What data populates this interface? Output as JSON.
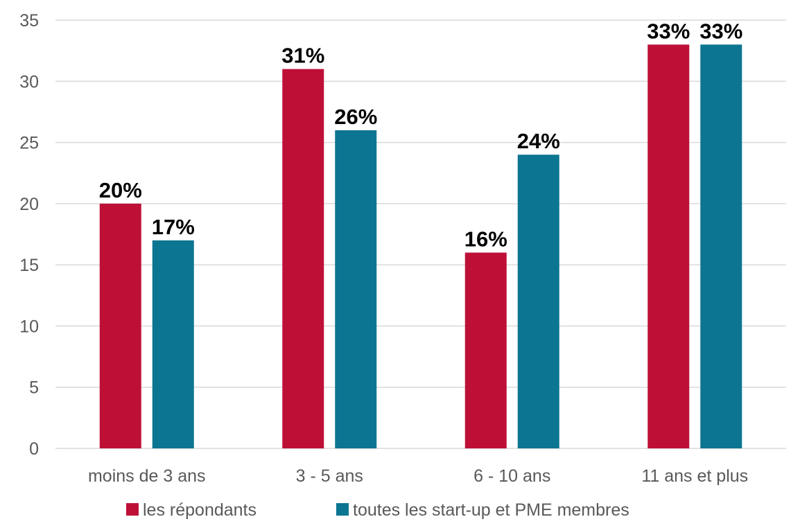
{
  "chart_data": {
    "type": "bar",
    "categories": [
      "moins de 3 ans",
      "3 - 5 ans",
      "6 - 10 ans",
      "11 ans et plus"
    ],
    "series": [
      {
        "name": "les répondants",
        "color": "#be1037",
        "values": [
          20,
          31,
          16,
          33
        ],
        "labels": [
          "20%",
          "31%",
          "16%",
          "33%"
        ]
      },
      {
        "name": "toutes les start-up et PME membres",
        "color": "#0c7592",
        "values": [
          17,
          26,
          24,
          33
        ],
        "labels": [
          "17%",
          "26%",
          "24%",
          "33%"
        ]
      }
    ],
    "ylim": [
      0,
      35
    ],
    "yticks": [
      0,
      5,
      10,
      15,
      20,
      25,
      30,
      35
    ],
    "grid": true,
    "legend": "bottom"
  }
}
